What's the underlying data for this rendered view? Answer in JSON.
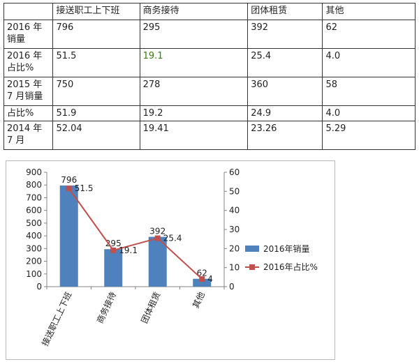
{
  "table": {
    "header": [
      "",
      "接送职工上下班",
      "商务接待",
      "团体租赁",
      "其他"
    ],
    "rows": [
      {
        "label": "2016 年销量",
        "cells": [
          "796",
          "295",
          "392",
          "62"
        ]
      },
      {
        "label": "2016 年占比%",
        "cells": [
          "51.5",
          "19.1",
          "25.4",
          "4.0"
        ]
      },
      {
        "label": "2015 年 7 月销量",
        "cells": [
          "750",
          "278",
          "360",
          "58"
        ]
      },
      {
        "label": "占比%",
        "cells": [
          "51.9",
          "19.2",
          "24.9",
          "4.0"
        ]
      },
      {
        "label": "2014 年 7 月",
        "cells": [
          "52.04",
          "19.41",
          "23.26",
          "5.29"
        ]
      }
    ]
  },
  "chart_data": {
    "type": "bar",
    "categories": [
      "接送职工上下班",
      "商务接待",
      "团体租赁",
      "其他"
    ],
    "series": [
      {
        "name": "2016年销量",
        "type": "bar",
        "axis": "left",
        "values": [
          796,
          295,
          392,
          62
        ],
        "data_labels": [
          "796",
          "295",
          "392",
          "62"
        ],
        "color": "#4f81bd"
      },
      {
        "name": "2016年占比%",
        "type": "line",
        "axis": "right",
        "values": [
          51.5,
          19.1,
          25.4,
          4
        ],
        "data_labels": [
          "51.5",
          "19.1",
          "25.4",
          "4"
        ],
        "color": "#c0504d"
      }
    ],
    "y_left": {
      "range": [
        0,
        900
      ],
      "ticks": [
        "0",
        "100",
        "200",
        "300",
        "400",
        "500",
        "600",
        "700",
        "800",
        "900"
      ]
    },
    "y_right": {
      "range": [
        0,
        60
      ],
      "ticks": [
        "0",
        "10",
        "20",
        "30",
        "40",
        "50",
        "60"
      ]
    },
    "grid": false,
    "legend_position": "right"
  }
}
